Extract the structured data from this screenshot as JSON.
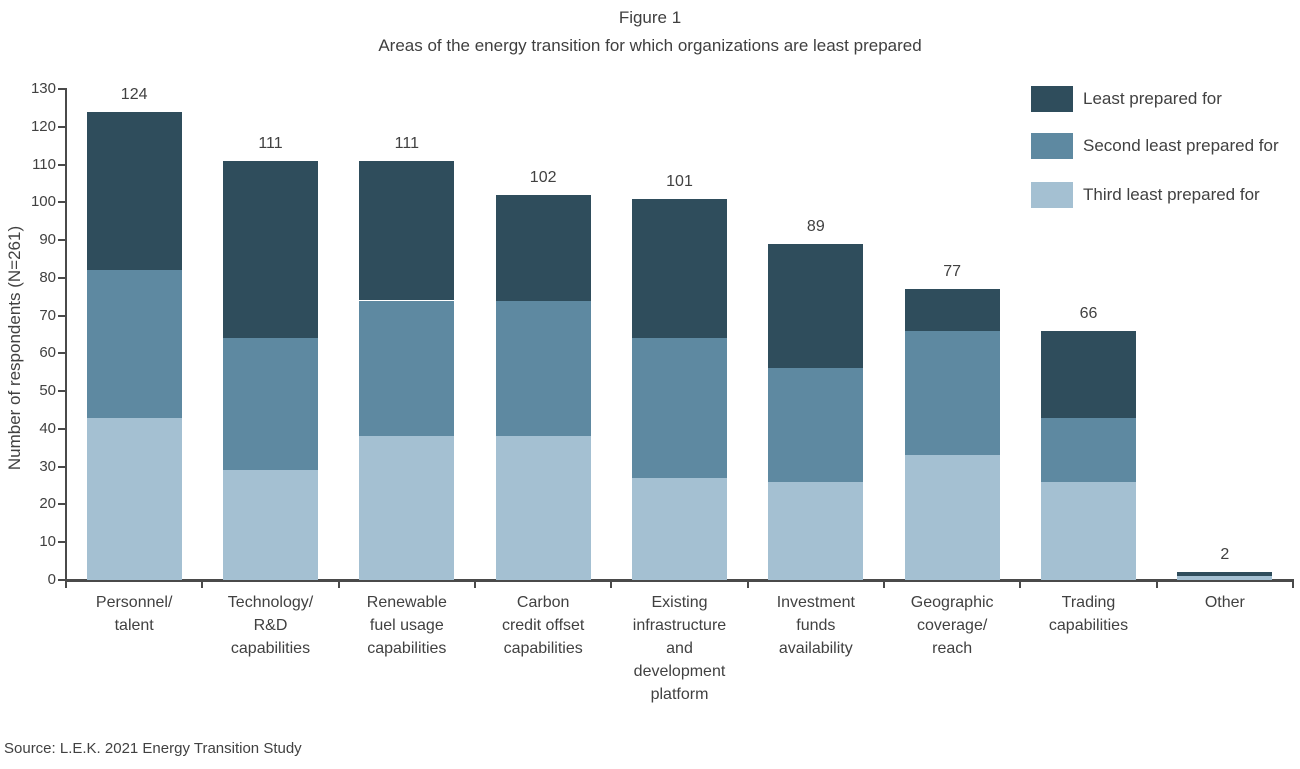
{
  "title": "Figure 1",
  "subtitle": "Areas of the energy transition for which organizations are least prepared",
  "source": "Source: L.E.K. 2021 Energy Transition Study",
  "colors": {
    "least": "#2f4d5c",
    "second": "#5e89a1",
    "third": "#a4c0d2",
    "axis": "#4a4a4a",
    "text": "#414141"
  },
  "legend": [
    {
      "label": "Least prepared for",
      "color_key": "least"
    },
    {
      "label": "Second least prepared for",
      "color_key": "second"
    },
    {
      "label": "Third least prepared for",
      "color_key": "third"
    }
  ],
  "y_axis": {
    "label": "Number of respondents (N=261)",
    "min": 0,
    "max": 130,
    "step": 10
  },
  "chart_data": {
    "type": "bar",
    "stacked": true,
    "title": "Figure 1",
    "subtitle": "Areas of the energy transition for which organizations are least prepared",
    "xlabel": "",
    "ylabel": "Number of respondents (N=261)",
    "ylim": [
      0,
      130
    ],
    "grid": false,
    "legend_position": "top-right",
    "categories": [
      "Personnel/ talent",
      "Technology/ R&D capabilities",
      "Renewable fuel usage capabilities",
      "Carbon credit offset capabilities",
      "Existing infrastructure and development platform",
      "Investment funds availability",
      "Geographic coverage/ reach",
      "Trading capabilities",
      "Other"
    ],
    "category_lines": [
      "Personnel/\ntalent",
      "Technology/\nR&D\ncapabilities",
      "Renewable\nfuel usage\ncapabilities",
      "Carbon\ncredit offset\ncapabilities",
      "Existing\ninfrastructure\nand\ndevelopment\nplatform",
      "Investment\nfunds\navailability",
      "Geographic\ncoverage/\nreach",
      "Trading\ncapabilities",
      "Other"
    ],
    "series": [
      {
        "name": "Third least prepared for",
        "color_key": "third",
        "values": [
          43,
          29,
          38,
          38,
          27,
          26,
          33,
          26,
          1
        ]
      },
      {
        "name": "Second least prepared for",
        "color_key": "second",
        "values": [
          39,
          35,
          36,
          36,
          37,
          30,
          33,
          17,
          0
        ]
      },
      {
        "name": "Least prepared for",
        "color_key": "least",
        "values": [
          42,
          47,
          37,
          28,
          37,
          33,
          11,
          23,
          1
        ]
      }
    ],
    "totals": [
      124,
      111,
      111,
      102,
      101,
      89,
      77,
      66,
      2
    ]
  }
}
